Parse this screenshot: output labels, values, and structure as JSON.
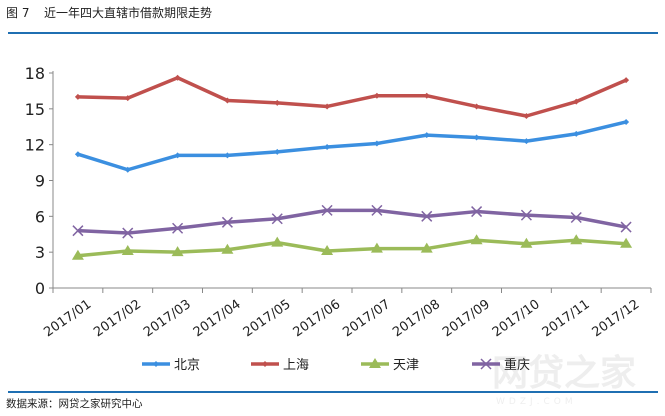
{
  "header": {
    "figure_label": "图 7",
    "title": "近一年四大直辖市借款期限走势"
  },
  "footer": {
    "source": "数据来源：网贷之家研究中心"
  },
  "watermark": {
    "text": "网贷之家",
    "sub": "WDZJ.COM"
  },
  "colors": {
    "rule": "#1f6fb2"
  },
  "chart_data": {
    "type": "line",
    "title": "近一年四大直辖市借款期限走势",
    "xlabel": "",
    "ylabel": "",
    "categories": [
      "2017/01",
      "2017/02",
      "2017/03",
      "2017/04",
      "2017/05",
      "2017/06",
      "2017/07",
      "2017/08",
      "2017/09",
      "2017/10",
      "2017/11",
      "2017/12"
    ],
    "ylim": [
      0,
      18
    ],
    "yticks": [
      0,
      3,
      6,
      9,
      12,
      15,
      18
    ],
    "grid": false,
    "legend": "bottom",
    "series": [
      {
        "name": "北京",
        "color": "#3b8fe0",
        "marker": "diamond",
        "values": [
          11.2,
          9.9,
          11.1,
          11.1,
          11.4,
          11.8,
          12.1,
          12.8,
          12.6,
          12.3,
          12.9,
          13.9
        ]
      },
      {
        "name": "上海",
        "color": "#c0504d",
        "marker": "diamond",
        "values": [
          16.0,
          15.9,
          17.6,
          15.7,
          15.5,
          15.2,
          16.1,
          16.1,
          15.2,
          14.4,
          15.6,
          17.4
        ]
      },
      {
        "name": "天津",
        "color": "#9bbb59",
        "marker": "triangle",
        "values": [
          2.7,
          3.1,
          3.0,
          3.2,
          3.8,
          3.1,
          3.3,
          3.3,
          4.0,
          3.7,
          4.0,
          3.7
        ]
      },
      {
        "name": "重庆",
        "color": "#8064a2",
        "marker": "x",
        "values": [
          4.8,
          4.6,
          5.0,
          5.5,
          5.8,
          6.5,
          6.5,
          6.0,
          6.4,
          6.1,
          5.9,
          5.1
        ]
      }
    ]
  }
}
